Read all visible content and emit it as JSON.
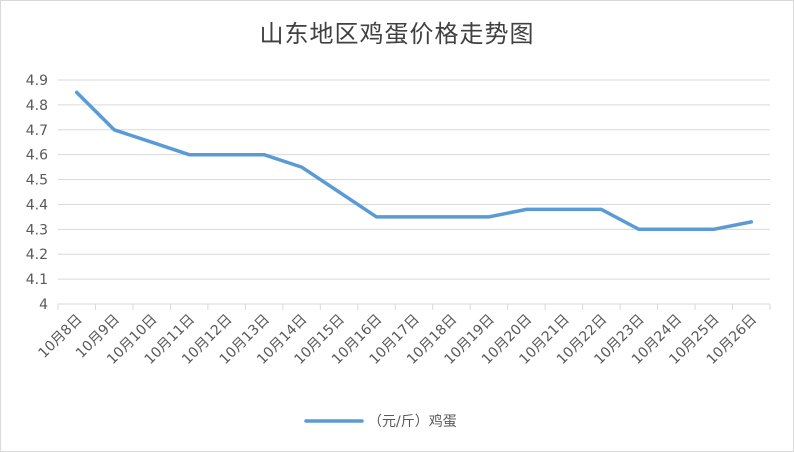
{
  "chart_data": {
    "type": "line",
    "title": "山东地区鸡蛋价格走势图",
    "xlabel": "",
    "ylabel": "",
    "categories": [
      "10月8日",
      "10月9日",
      "10月10日",
      "10月11日",
      "10月12日",
      "10月13日",
      "10月14日",
      "10月15日",
      "10月16日",
      "10月17日",
      "10月18日",
      "10月19日",
      "10月20日",
      "10月21日",
      "10月22日",
      "10月23日",
      "10月24日",
      "10月25日",
      "10月26日"
    ],
    "series": [
      {
        "name": "（元/斤）鸡蛋",
        "values": [
          4.85,
          4.7,
          4.65,
          4.6,
          4.6,
          4.6,
          4.55,
          4.45,
          4.35,
          4.35,
          4.35,
          4.35,
          4.38,
          4.38,
          4.38,
          4.3,
          4.3,
          4.3,
          4.33
        ]
      }
    ],
    "ylim": [
      4.0,
      4.9
    ],
    "yticks": [
      "4",
      "4.1",
      "4.2",
      "4.3",
      "4.4",
      "4.5",
      "4.6",
      "4.7",
      "4.8",
      "4.9"
    ],
    "grid": true,
    "legend_position": "bottom",
    "colors": {
      "line": "#5b9bd5",
      "grid": "#d9d9d9",
      "text": "#595959"
    }
  }
}
